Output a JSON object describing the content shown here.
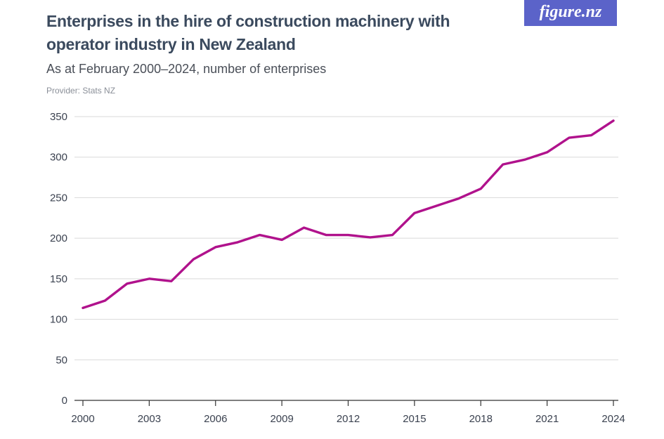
{
  "header": {
    "title": "Enterprises in the hire of construction machinery with operator industry in New Zealand",
    "subtitle": "As at February 2000–2024, number of enterprises",
    "provider": "Provider: Stats NZ",
    "logo_text": "figure.nz"
  },
  "colors": {
    "line": "#b0128c",
    "grid": "#d9d9d9",
    "logo_bg": "#5b63c9"
  },
  "chart_data": {
    "type": "line",
    "title": "Enterprises in the hire of construction machinery with operator industry in New Zealand",
    "subtitle": "As at February 2000–2024, number of enterprises",
    "xlabel": "",
    "ylabel": "",
    "ylim": [
      0,
      350
    ],
    "yticks": [
      0,
      50,
      100,
      150,
      200,
      250,
      300,
      350
    ],
    "xticks": [
      2000,
      2003,
      2006,
      2009,
      2012,
      2015,
      2018,
      2021,
      2024
    ],
    "grid": true,
    "x": [
      2000,
      2001,
      2002,
      2003,
      2004,
      2005,
      2006,
      2007,
      2008,
      2009,
      2010,
      2011,
      2012,
      2013,
      2014,
      2015,
      2016,
      2017,
      2018,
      2019,
      2020,
      2021,
      2022,
      2023,
      2024
    ],
    "series": [
      {
        "values": [
          114,
          123,
          144,
          150,
          147,
          174,
          189,
          195,
          204,
          198,
          213,
          204,
          204,
          201,
          204,
          231,
          240,
          249,
          261,
          291,
          297,
          306,
          324,
          327,
          345
        ]
      }
    ]
  }
}
